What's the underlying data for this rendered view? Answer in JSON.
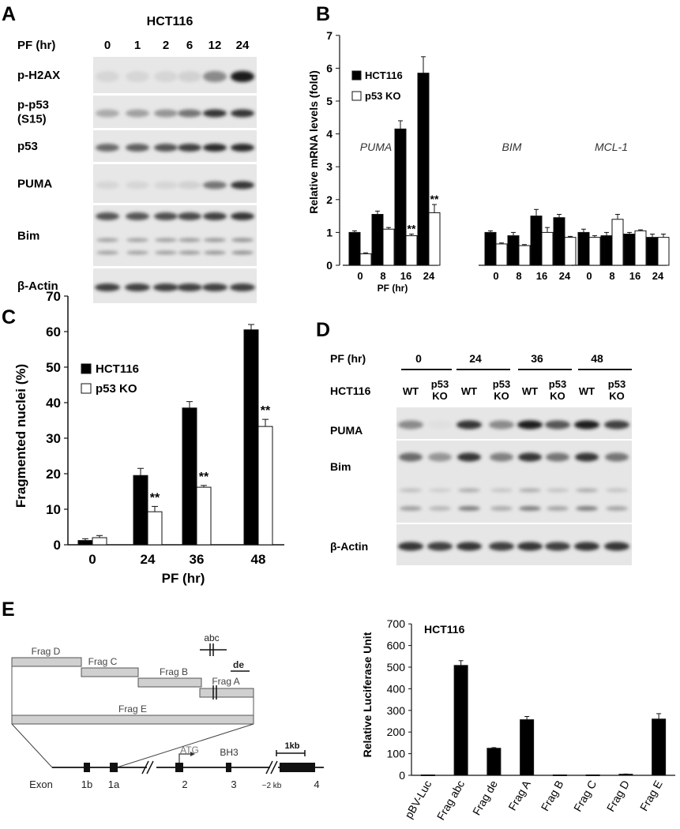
{
  "panels": {
    "A": "A",
    "B": "B",
    "C": "C",
    "D": "D",
    "E": "E"
  },
  "panel_a": {
    "cell_line": "HCT116",
    "timepoint_label": "PF (hr)",
    "timepoints": [
      "0",
      "1",
      "2",
      "6",
      "12",
      "24"
    ],
    "rows": [
      {
        "label": "p-H2AX",
        "bands": [
          0.1,
          0.1,
          0.1,
          0.12,
          0.45,
          0.95
        ]
      },
      {
        "label": "p-p53",
        "label2": "(S15)",
        "bands": [
          0.3,
          0.35,
          0.4,
          0.55,
          0.85,
          0.85
        ]
      },
      {
        "label": "p53",
        "bands": [
          0.6,
          0.65,
          0.7,
          0.8,
          0.9,
          0.9
        ]
      },
      {
        "label": "PUMA",
        "bands": [
          0.1,
          0.1,
          0.1,
          0.12,
          0.55,
          0.85
        ]
      },
      {
        "label": "Bim",
        "bands": [
          0.7,
          0.7,
          0.72,
          0.75,
          0.8,
          0.85
        ]
      },
      {
        "label": "β-Actin",
        "bands": [
          0.8,
          0.8,
          0.8,
          0.8,
          0.8,
          0.8
        ]
      }
    ]
  },
  "panel_b": {
    "chart_data": {
      "type": "bar",
      "ylabel": "Relative mRNA levels (fold)",
      "xlabel": "PF (hr)",
      "ylim": [
        0,
        7
      ],
      "yticks": [
        "0",
        "1",
        "2",
        "3",
        "4",
        "5",
        "6",
        "7"
      ],
      "groups": [
        {
          "gene": "PUMA",
          "categories": [
            "0",
            "8",
            "16",
            "24"
          ],
          "significance": [
            "",
            "",
            "**",
            "**"
          ]
        },
        {
          "gene": "BIM",
          "categories": [
            "0",
            "8",
            "16",
            "24"
          ],
          "significance": [
            "",
            "",
            "",
            ""
          ]
        },
        {
          "gene": "MCL-1",
          "categories": [
            "0",
            "8",
            "16",
            "24"
          ],
          "significance": [
            "",
            "",
            "",
            ""
          ]
        }
      ],
      "series": [
        {
          "name": "HCT116",
          "color": "#000000",
          "values": [
            [
              1.0,
              1.55,
              4.15,
              5.85
            ],
            [
              1.0,
              0.9,
              1.5,
              1.45
            ],
            [
              1.0,
              0.9,
              0.95,
              0.85
            ]
          ],
          "errors": [
            [
              0.05,
              0.1,
              0.25,
              0.5
            ],
            [
              0.05,
              0.1,
              0.2,
              0.1
            ],
            [
              0.1,
              0.1,
              0.05,
              0.1
            ]
          ]
        },
        {
          "name": "p53 KO",
          "color": "#ffffff",
          "values": [
            [
              0.35,
              1.1,
              0.9,
              1.6
            ],
            [
              0.65,
              0.6,
              1.0,
              0.85
            ],
            [
              0.85,
              1.4,
              1.05,
              0.85
            ]
          ],
          "errors": [
            [
              0.03,
              0.05,
              0.05,
              0.25
            ],
            [
              0.03,
              0.03,
              0.15,
              0.03
            ],
            [
              0.05,
              0.15,
              0.03,
              0.1
            ]
          ]
        }
      ]
    }
  },
  "panel_c": {
    "chart_data": {
      "type": "bar",
      "ylabel": "Fragmented nuclei (%)",
      "xlabel": "PF (hr)",
      "ylim": [
        0,
        70
      ],
      "yticks": [
        "0",
        "10",
        "20",
        "30",
        "40",
        "50",
        "60",
        "70"
      ],
      "categories": [
        "0",
        "24",
        "36",
        "48"
      ],
      "significance": [
        "",
        "**",
        "**",
        "**"
      ],
      "series": [
        {
          "name": "HCT116",
          "color": "#000000",
          "values": [
            1.2,
            19.5,
            38.5,
            60.5
          ],
          "errors": [
            0.5,
            2.0,
            1.8,
            1.5
          ]
        },
        {
          "name": "p53 KO",
          "color": "#ffffff",
          "values": [
            2.0,
            9.3,
            16.2,
            33.3
          ],
          "errors": [
            0.6,
            1.5,
            0.5,
            2.0
          ]
        }
      ]
    }
  },
  "panel_d": {
    "timepoint_label": "PF (hr)",
    "cell_line_label": "HCT116",
    "timepoints": [
      "0",
      "24",
      "36",
      "48"
    ],
    "lanes": [
      {
        "l1": "WT",
        "l2": ""
      },
      {
        "l1": "p53",
        "l2": "KO"
      },
      {
        "l1": "WT",
        "l2": ""
      },
      {
        "l1": "p53",
        "l2": "KO"
      },
      {
        "l1": "WT",
        "l2": ""
      },
      {
        "l1": "p53",
        "l2": "KO"
      },
      {
        "l1": "WT",
        "l2": ""
      },
      {
        "l1": "p53",
        "l2": "KO"
      }
    ],
    "rows": [
      {
        "label": "PUMA",
        "bands": [
          0.45,
          0.05,
          0.85,
          0.45,
          0.95,
          0.7,
          0.95,
          0.8
        ]
      },
      {
        "label": "Bim",
        "bands": [
          0.6,
          0.4,
          0.85,
          0.5,
          0.85,
          0.55,
          0.85,
          0.55
        ]
      },
      {
        "label": "β-Actin",
        "bands": [
          0.85,
          0.8,
          0.85,
          0.8,
          0.85,
          0.8,
          0.85,
          0.85
        ]
      }
    ]
  },
  "panel_e": {
    "fragments": {
      "d": "Frag D",
      "c": "Frag C",
      "b": "Frag B",
      "a": "Frag A",
      "e": "Frag E",
      "abc": "abc",
      "de": "de"
    },
    "gene": {
      "exon_label": "Exon",
      "exons": [
        "1b",
        "1a",
        "2",
        "3",
        "4"
      ],
      "atg": "ATG",
      "bh3": "BH3",
      "gap": "~2 kb",
      "scale": "1kb"
    },
    "chart_data": {
      "type": "bar",
      "title": "HCT116",
      "ylabel": "Relative Luciferase Unit",
      "ylim": [
        0,
        700
      ],
      "yticks": [
        "0",
        "100",
        "200",
        "300",
        "400",
        "500",
        "600",
        "700"
      ],
      "categories": [
        "pBV-Luc",
        "Frag abc",
        "Frag de",
        "Frag A",
        "Frag B",
        "Frag C",
        "Frag D",
        "Frag E"
      ],
      "series": [
        {
          "name": "",
          "color": "#000000",
          "values": [
            2,
            508,
            125,
            257,
            2,
            2,
            5,
            260
          ],
          "errors": [
            0,
            22,
            3,
            15,
            0,
            0,
            1,
            25
          ]
        }
      ]
    }
  }
}
